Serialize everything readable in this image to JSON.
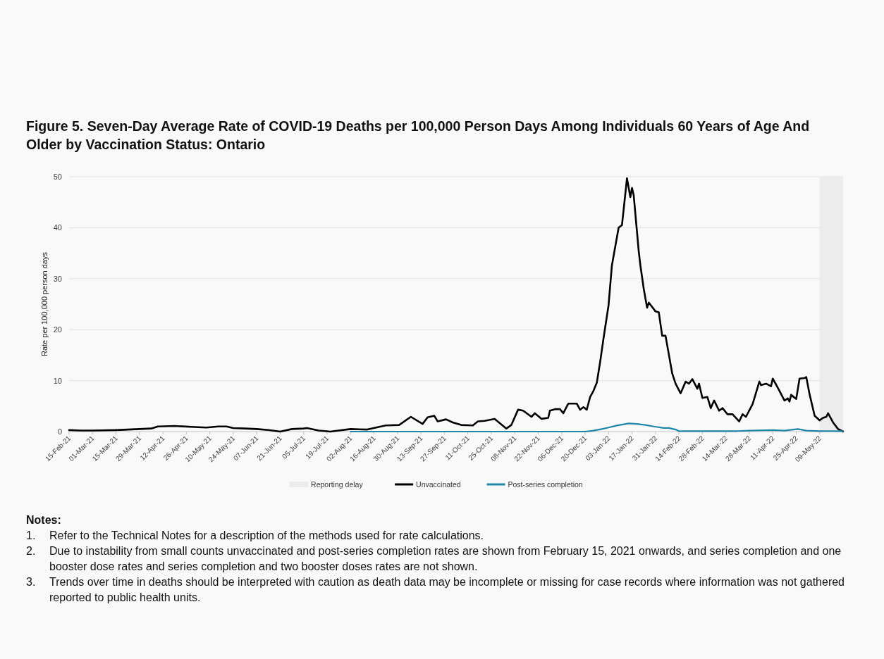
{
  "chart_data": {
    "type": "line",
    "title": "Figure 5. Seven-Day Average Rate of COVID-19 Deaths per 100,000 Person Days Among Individuals 60 Years of Age And Older by Vaccination Status: Ontario",
    "ylabel": "Rate per 100,000 person days",
    "xlim": [
      "2021-02-15",
      "2022-05-23"
    ],
    "xticks": [
      {
        "value": "2021-02-15",
        "label": "15-Feb-21"
      },
      {
        "value": "2021-03-01",
        "label": "01-Mar-21"
      },
      {
        "value": "2021-03-15",
        "label": "15-Mar-21"
      },
      {
        "value": "2021-03-29",
        "label": "29-Mar-21"
      },
      {
        "value": "2021-04-12",
        "label": "12-Apr-21"
      },
      {
        "value": "2021-04-26",
        "label": "26-Apr-21"
      },
      {
        "value": "2021-05-10",
        "label": "10-May-21"
      },
      {
        "value": "2021-05-24",
        "label": "24-May-21"
      },
      {
        "value": "2021-06-07",
        "label": "07-Jun-21"
      },
      {
        "value": "2021-06-21",
        "label": "21-Jun-21"
      },
      {
        "value": "2021-07-05",
        "label": "05-Jul-21"
      },
      {
        "value": "2021-07-19",
        "label": "19-Jul-21"
      },
      {
        "value": "2021-08-02",
        "label": "02-Aug-21"
      },
      {
        "value": "2021-08-16",
        "label": "16-Aug-21"
      },
      {
        "value": "2021-08-30",
        "label": "30-Aug-21"
      },
      {
        "value": "2021-09-13",
        "label": "13-Sep-21"
      },
      {
        "value": "2021-09-27",
        "label": "27-Sep-21"
      },
      {
        "value": "2021-10-11",
        "label": "11-Oct-21"
      },
      {
        "value": "2021-10-25",
        "label": "25-Oct-21"
      },
      {
        "value": "2021-11-08",
        "label": "08-Nov-21"
      },
      {
        "value": "2021-11-22",
        "label": "22-Nov-21"
      },
      {
        "value": "2021-12-06",
        "label": "06-Dec-21"
      },
      {
        "value": "2021-12-20",
        "label": "20-Dec-21"
      },
      {
        "value": "2022-01-03",
        "label": "03-Jan-22"
      },
      {
        "value": "2022-01-17",
        "label": "17-Jan-22"
      },
      {
        "value": "2022-01-31",
        "label": "31-Jan-22"
      },
      {
        "value": "2022-02-14",
        "label": "14-Feb-22"
      },
      {
        "value": "2022-02-28",
        "label": "28-Feb-22"
      },
      {
        "value": "2022-03-14",
        "label": "14-Mar-22"
      },
      {
        "value": "2022-03-28",
        "label": "28-Mar-22"
      },
      {
        "value": "2022-04-11",
        "label": "11-Apr-22"
      },
      {
        "value": "2022-04-25",
        "label": "25-Apr-22"
      },
      {
        "value": "2022-05-09",
        "label": "09-May-22"
      }
    ],
    "ylim": [
      0,
      50
    ],
    "yticks": [
      0,
      10,
      20,
      30,
      40,
      50
    ],
    "grid": "y",
    "legend": "bottom",
    "bands": [
      {
        "axis": "x",
        "from": "2022-05-09",
        "to": "2022-05-23",
        "label": "Reporting delay",
        "color": "#ececec"
      }
    ],
    "series": [
      {
        "name": "Unvaccinated",
        "color": "#000000",
        "x": [
          "2021-02-15",
          "2021-02-22",
          "2021-03-01",
          "2021-03-15",
          "2021-03-29",
          "2021-04-05",
          "2021-04-09",
          "2021-04-19",
          "2021-05-01",
          "2021-05-08",
          "2021-05-15",
          "2021-05-20",
          "2021-05-24",
          "2021-05-31",
          "2021-06-07",
          "2021-06-14",
          "2021-06-21",
          "2021-06-28",
          "2021-07-05",
          "2021-07-07",
          "2021-07-14",
          "2021-07-21",
          "2021-08-02",
          "2021-08-12",
          "2021-08-23",
          "2021-08-31",
          "2021-09-07",
          "2021-09-14",
          "2021-09-17",
          "2021-09-21",
          "2021-09-23",
          "2021-09-28",
          "2021-10-02",
          "2021-10-07",
          "2021-10-14",
          "2021-10-17",
          "2021-10-21",
          "2021-10-27",
          "2021-11-03",
          "2021-11-06",
          "2021-11-10",
          "2021-11-13",
          "2021-11-18",
          "2021-11-20",
          "2021-11-24",
          "2021-11-28",
          "2021-11-29",
          "2021-12-02",
          "2021-12-05",
          "2021-12-07",
          "2021-12-10",
          "2021-12-15",
          "2021-12-17",
          "2021-12-19",
          "2021-12-21",
          "2021-12-23",
          "2021-12-25",
          "2021-12-27",
          "2021-12-29",
          "2021-12-31",
          "2022-01-03",
          "2022-01-05",
          "2022-01-09",
          "2022-01-11",
          "2022-01-14",
          "2022-01-16",
          "2022-01-17",
          "2022-01-18",
          "2022-01-21",
          "2022-01-22",
          "2022-01-24",
          "2022-01-26",
          "2022-01-27",
          "2022-01-31",
          "2022-02-02",
          "2022-02-04",
          "2022-02-06",
          "2022-02-10",
          "2022-02-12",
          "2022-02-15",
          "2022-02-18",
          "2022-02-20",
          "2022-02-22",
          "2022-02-25",
          "2022-02-26",
          "2022-02-28",
          "2022-03-03",
          "2022-03-05",
          "2022-03-07",
          "2022-03-10",
          "2022-03-12",
          "2022-03-15",
          "2022-03-18",
          "2022-03-22",
          "2022-03-24",
          "2022-03-26",
          "2022-03-30",
          "2022-04-03",
          "2022-04-04",
          "2022-04-07",
          "2022-04-10",
          "2022-04-11",
          "2022-04-15",
          "2022-04-18",
          "2022-04-20",
          "2022-04-21",
          "2022-04-22",
          "2022-04-25",
          "2022-04-27",
          "2022-04-30",
          "2022-05-01",
          "2022-05-03",
          "2022-05-06",
          "2022-05-09",
          "2022-05-11",
          "2022-05-13",
          "2022-05-14",
          "2022-05-17",
          "2022-05-20",
          "2022-05-23"
        ],
        "values": [
          0.3,
          0.2,
          0.2,
          0.3,
          0.5,
          0.6,
          1.0,
          1.1,
          0.9,
          0.8,
          1.0,
          1.0,
          0.7,
          0.6,
          0.5,
          0.3,
          0.0,
          0.5,
          0.6,
          0.7,
          0.2,
          0.0,
          0.5,
          0.4,
          1.2,
          1.3,
          2.9,
          1.5,
          2.8,
          3.1,
          2.0,
          2.4,
          1.8,
          1.3,
          1.2,
          2.0,
          2.1,
          2.5,
          0.6,
          1.3,
          4.3,
          4.1,
          2.9,
          3.6,
          2.5,
          2.7,
          4.1,
          4.4,
          4.4,
          3.6,
          5.5,
          5.5,
          4.3,
          4.8,
          4.3,
          6.8,
          8.0,
          9.6,
          13.7,
          18.3,
          24.8,
          32.6,
          40.0,
          40.5,
          49.7,
          46.0,
          47.8,
          46.4,
          35.4,
          32.6,
          28.0,
          24.3,
          25.3,
          23.6,
          23.4,
          18.8,
          18.8,
          11.4,
          9.4,
          7.5,
          9.8,
          9.4,
          10.3,
          8.4,
          9.4,
          6.6,
          6.8,
          4.6,
          6.1,
          4.1,
          4.6,
          3.4,
          3.4,
          2.0,
          3.4,
          2.9,
          5.4,
          9.8,
          9.1,
          9.4,
          8.9,
          10.4,
          8.0,
          6.1,
          6.5,
          5.9,
          7.2,
          6.4,
          10.4,
          10.5,
          10.7,
          7.3,
          3.1,
          2.2,
          2.7,
          2.9,
          3.6,
          1.8,
          0.5,
          0.0
        ]
      },
      {
        "name": "Post-series completion",
        "color": "#1f86a8",
        "x": [
          "2021-08-02",
          "2021-12-20",
          "2021-12-25",
          "2021-12-30",
          "2022-01-03",
          "2022-01-08",
          "2022-01-15",
          "2022-01-20",
          "2022-01-25",
          "2022-01-30",
          "2022-02-01",
          "2022-02-05",
          "2022-02-08",
          "2022-02-12",
          "2022-02-14",
          "2022-02-28",
          "2022-03-14",
          "2022-03-21",
          "2022-03-28",
          "2022-04-11",
          "2022-04-18",
          "2022-04-26",
          "2022-05-01",
          "2022-05-09",
          "2022-05-21",
          "2022-05-23"
        ],
        "values": [
          0.0,
          0.0,
          0.2,
          0.5,
          0.8,
          1.2,
          1.6,
          1.5,
          1.3,
          1.0,
          0.9,
          0.7,
          0.7,
          0.4,
          0.1,
          0.1,
          0.1,
          0.1,
          0.2,
          0.3,
          0.2,
          0.5,
          0.2,
          0.1,
          0.1,
          0.1
        ]
      }
    ],
    "annotations": [
      "Notes:",
      "1. Refer to the Technical Notes for a description of the methods used for rate calculations.",
      "2. Due to instability from small counts unvaccinated and post-series completion rates are shown from February 15, 2021 onwards, and series completion and one booster dose rates and series completion and two booster doses rates are not shown.",
      "3. Trends over time in deaths should be interpreted with caution as death data may be incomplete or missing for case records where information was not gathered reported to public health units."
    ]
  }
}
